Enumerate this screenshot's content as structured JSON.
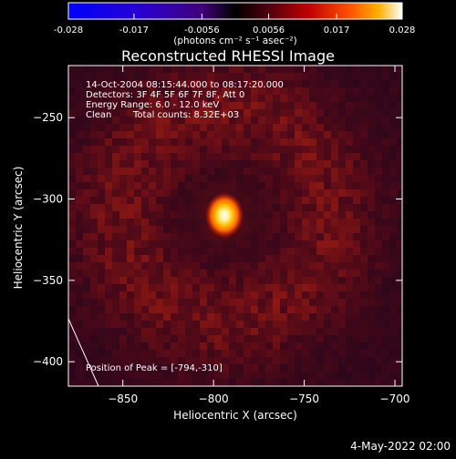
{
  "chart_data": {
    "type": "heatmap",
    "title": "Reconstructed RHESSI Image",
    "colorbar": {
      "colormap": "hessi",
      "min": -0.028,
      "max": 0.028,
      "tick_labels": [
        "-0.028",
        "-0.017",
        "-0.0056",
        "0.0056",
        "0.017",
        "0.028"
      ],
      "tick_values": [
        -0.028,
        -0.017,
        -0.0056,
        0.0056,
        0.017,
        0.028
      ],
      "unit_label": "(photons cm⁻² s⁻¹ asec⁻²)"
    },
    "xlabel": "Heliocentric X (arcsec)",
    "ylabel": "Heliocentric Y (arcsec)",
    "xlim": [
      -880,
      -696
    ],
    "ylim": [
      -415,
      -218
    ],
    "xticks": [
      -850,
      -800,
      -750,
      -700
    ],
    "yticks": [
      -250,
      -300,
      -350,
      -400
    ],
    "peak": {
      "x": -794,
      "y": -310
    },
    "info": {
      "time_range": "14-Oct-2004 08:15:44.000 to 08:17:20.000",
      "detectors": "Detectors: 3F 4F 5F 6F 7F 8F, Att 0",
      "energy_range": "Energy Range: 6.0 - 12.0 keV",
      "clean_label": "Clean",
      "total_counts": "Total counts: 8.32E+03",
      "peak_position": "Position of Peak = [-794,-310]"
    },
    "grid": false,
    "limb_line": true
  },
  "footer": {
    "date": "4-May-2022 02:00"
  }
}
